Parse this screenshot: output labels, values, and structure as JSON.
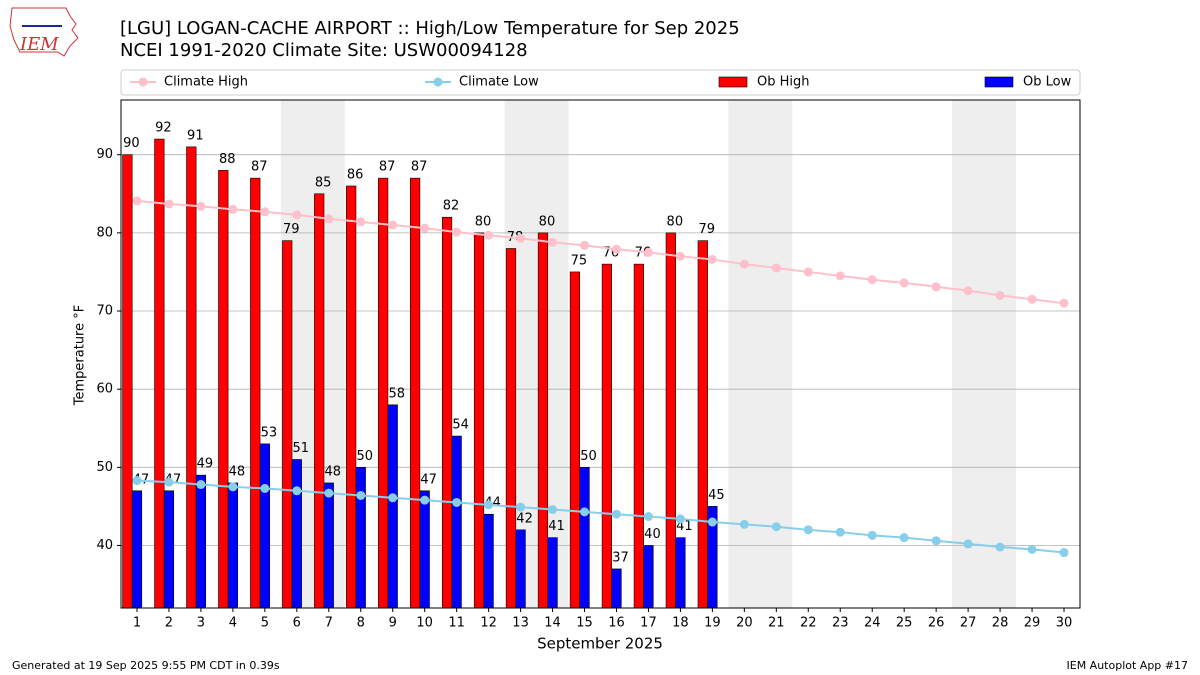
{
  "chart_data": {
    "type": "bar",
    "title": "[LGU] LOGAN-CACHE AIRPORT :: High/Low Temperature for Sep 2025",
    "subtitle": "NCEI 1991-2020 Climate Site: USW00094128",
    "logo_text": "IEM",
    "xlabel": "September 2025",
    "ylabel": "Temperature °F",
    "footer_left": "Generated at 19 Sep 2025 9:55 PM CDT in 0.39s",
    "footer_right": "IEM Autoplot App #17",
    "x": [
      1,
      2,
      3,
      4,
      5,
      6,
      7,
      8,
      9,
      10,
      11,
      12,
      13,
      14,
      15,
      16,
      17,
      18,
      19,
      20,
      21,
      22,
      23,
      24,
      25,
      26,
      27,
      28,
      29,
      30
    ],
    "xlim": [
      0.5,
      30.5
    ],
    "xticks": [
      1,
      2,
      3,
      4,
      5,
      6,
      7,
      8,
      9,
      10,
      11,
      12,
      13,
      14,
      15,
      16,
      17,
      18,
      19,
      20,
      21,
      22,
      23,
      24,
      25,
      26,
      27,
      28,
      29,
      30
    ],
    "ylim": [
      32,
      97
    ],
    "yticks": [
      40,
      50,
      60,
      70,
      80,
      90
    ],
    "grid": true,
    "weekend_bands": [
      [
        5.5,
        7.5
      ],
      [
        12.5,
        14.5
      ],
      [
        19.5,
        21.5
      ],
      [
        26.5,
        28.5
      ]
    ],
    "legend": "top",
    "series": [
      {
        "name": "Climate High",
        "type": "line",
        "color": "#ffc0cb",
        "values": [
          84.1,
          83.7,
          83.4,
          83.0,
          82.7,
          82.3,
          81.8,
          81.4,
          81.0,
          80.6,
          80.1,
          79.7,
          79.3,
          78.8,
          78.4,
          77.9,
          77.5,
          77.0,
          76.6,
          76.0,
          75.5,
          75.0,
          74.5,
          74.0,
          73.6,
          73.1,
          72.6,
          72.0,
          71.5,
          71.0
        ]
      },
      {
        "name": "Climate Low",
        "type": "line",
        "color": "#87ceeb",
        "values": [
          48.3,
          48.1,
          47.8,
          47.5,
          47.3,
          47.0,
          46.7,
          46.4,
          46.1,
          45.8,
          45.5,
          45.2,
          44.9,
          44.6,
          44.3,
          44.0,
          43.7,
          43.4,
          43.0,
          42.7,
          42.4,
          42.0,
          41.7,
          41.3,
          41.0,
          40.6,
          40.2,
          39.8,
          39.5,
          39.1
        ]
      },
      {
        "name": "Ob High",
        "type": "bar",
        "color": "#ff0000",
        "values": [
          90,
          92,
          91,
          88,
          87,
          79,
          85,
          86,
          87,
          87,
          82,
          80,
          78,
          80,
          75,
          76,
          76,
          80,
          79,
          null,
          null,
          null,
          null,
          null,
          null,
          null,
          null,
          null,
          null,
          null
        ]
      },
      {
        "name": "Ob Low",
        "type": "bar",
        "color": "#0000ff",
        "values": [
          47,
          47,
          49,
          48,
          53,
          51,
          48,
          50,
          58,
          47,
          54,
          44,
          42,
          41,
          50,
          37,
          40,
          41,
          45,
          null,
          null,
          null,
          null,
          null,
          null,
          null,
          null,
          null,
          null,
          null
        ]
      }
    ]
  }
}
